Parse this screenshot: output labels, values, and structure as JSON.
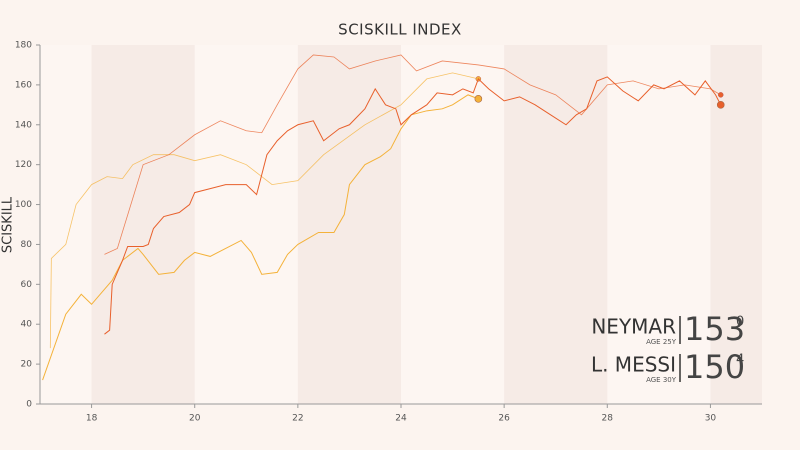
{
  "chart_data": {
    "type": "line",
    "title": "SCISKILL INDEX",
    "y_label": "SCISKILL",
    "xlim": [
      17,
      31
    ],
    "xticks": [
      18,
      20,
      22,
      24,
      26,
      28,
      30
    ],
    "ylim": [
      0,
      180
    ],
    "yticks": [
      0,
      20,
      40,
      60,
      80,
      100,
      120,
      140,
      160,
      180
    ],
    "series": [
      {
        "name": "NEYMAR",
        "age": "AGE 25Y",
        "score": "153",
        "decimal": "0",
        "color": "#f4b23a",
        "x": [
          17.05,
          17.5,
          17.8,
          18.0,
          18.2,
          18.4,
          18.6,
          18.9,
          19.0,
          19.3,
          19.6,
          19.8,
          20.0,
          20.3,
          20.6,
          20.9,
          21.1,
          21.3,
          21.6,
          21.8,
          22.0,
          22.4,
          22.7,
          22.9,
          23.0,
          23.3,
          23.6,
          23.8,
          24.0,
          24.2,
          24.5,
          24.8,
          25.0,
          25.3,
          25.5
        ],
        "values": [
          12,
          45,
          55,
          50,
          56,
          62,
          72,
          78,
          75,
          65,
          66,
          72,
          76,
          74,
          78,
          82,
          76,
          65,
          66,
          75,
          80,
          86,
          86,
          95,
          110,
          120,
          124,
          128,
          138,
          145,
          147,
          148,
          150,
          155,
          153
        ],
        "trend_x": [
          17.2,
          17.22,
          17.5,
          17.7,
          18.0,
          18.3,
          18.6,
          18.8,
          19.2,
          19.6,
          20.0,
          20.5,
          21.0,
          21.5,
          22.0,
          22.5,
          23.3,
          24.0,
          24.5,
          25.0,
          25.5
        ],
        "trend": [
          28,
          73,
          80,
          100,
          110,
          114,
          113,
          120,
          125,
          125,
          122,
          125,
          120,
          110,
          112,
          125,
          140,
          150,
          163,
          166,
          163
        ]
      },
      {
        "name": "L. MESSI",
        "age": "AGE 30Y",
        "score": "150",
        "decimal": "4",
        "color": "#e8602c",
        "x": [
          18.25,
          18.35,
          18.4,
          18.6,
          18.7,
          19.0,
          19.1,
          19.2,
          19.4,
          19.7,
          19.9,
          20.0,
          20.3,
          20.6,
          21.0,
          21.2,
          21.4,
          21.6,
          21.8,
          22.0,
          22.3,
          22.5,
          22.8,
          23.0,
          23.3,
          23.5,
          23.7,
          23.9,
          24.0,
          24.2,
          24.5,
          24.7,
          25.0,
          25.2,
          25.4,
          25.5,
          25.7,
          26.0,
          26.3,
          26.6,
          26.9,
          27.2,
          27.4,
          27.6,
          27.8,
          28.0,
          28.3,
          28.6,
          28.9,
          29.1,
          29.4,
          29.7,
          29.9,
          30.1,
          30.2
        ],
        "values": [
          35,
          37,
          60,
          72,
          79,
          79,
          80,
          88,
          94,
          96,
          100,
          106,
          108,
          110,
          110,
          105,
          125,
          132,
          137,
          140,
          142,
          132,
          138,
          140,
          148,
          158,
          150,
          148,
          140,
          145,
          150,
          156,
          155,
          158,
          156,
          163,
          158,
          152,
          154,
          150,
          145,
          140,
          145,
          148,
          162,
          164,
          157,
          152,
          160,
          158,
          162,
          155,
          162,
          155,
          150
        ],
        "trend_x": [
          18.25,
          18.5,
          19.0,
          19.5,
          20.0,
          20.5,
          21.0,
          21.3,
          21.6,
          22.0,
          22.3,
          22.7,
          23.0,
          23.5,
          24.0,
          24.3,
          24.8,
          25.5,
          26.0,
          26.5,
          27.0,
          27.5,
          28.0,
          28.5,
          29.0,
          29.5,
          30.0,
          30.2
        ],
        "trend": [
          75,
          78,
          120,
          125,
          135,
          142,
          137,
          136,
          150,
          168,
          175,
          174,
          168,
          172,
          175,
          167,
          172,
          170,
          168,
          160,
          155,
          145,
          160,
          162,
          158,
          160,
          158,
          155
        ]
      }
    ]
  }
}
